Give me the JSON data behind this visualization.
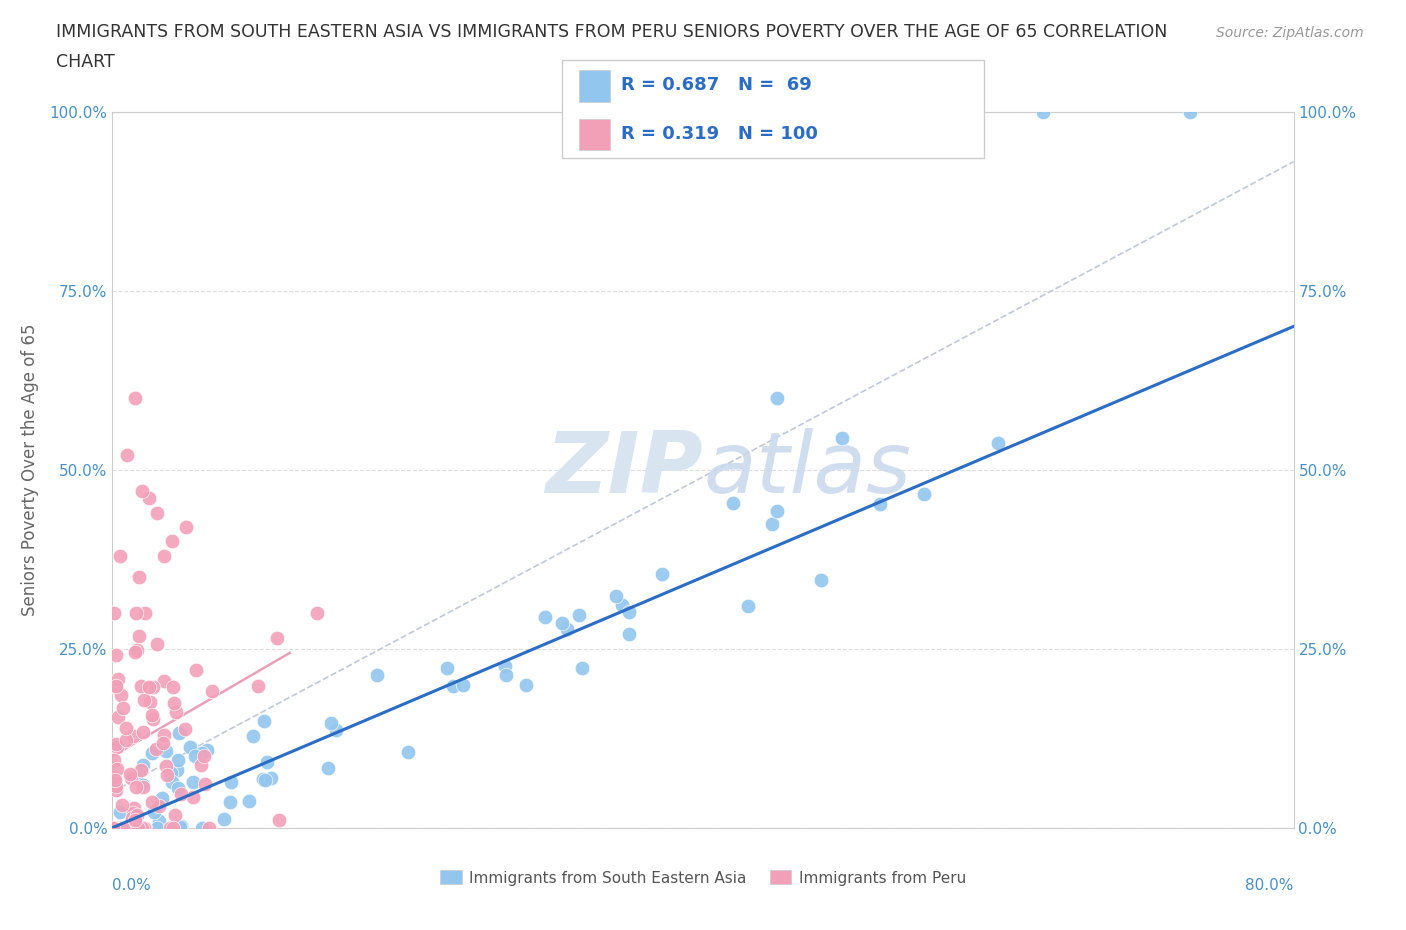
{
  "title_line1": "IMMIGRANTS FROM SOUTH EASTERN ASIA VS IMMIGRANTS FROM PERU SENIORS POVERTY OVER THE AGE OF 65 CORRELATION",
  "title_line2": "CHART",
  "source": "Source: ZipAtlas.com",
  "xlabel_bottom_left": "0.0%",
  "xlabel_bottom_right": "80.0%",
  "ylabel": "Seniors Poverty Over the Age of 65",
  "yticks": [
    "0.0%",
    "25.0%",
    "50.0%",
    "75.0%",
    "100.0%"
  ],
  "ytick_vals": [
    0,
    25,
    50,
    75,
    100
  ],
  "xmin": 0,
  "xmax": 80,
  "ymin": 0,
  "ymax": 100,
  "color_blue": "#93C6EE",
  "color_pink": "#F2A0B8",
  "color_blue_line": "#2B6CC4",
  "color_pink_line": "#E8A0B8",
  "color_gray_dashed": "#C0C8D8",
  "color_axis_text": "#4A90C4",
  "color_legend_text": "#2B6CC4",
  "color_title": "#333333",
  "color_source": "#999999",
  "color_ylabel": "#666666",
  "color_grid": "#DDDDDD",
  "color_spine": "#CCCCCC",
  "watermark_zip": "ZIP",
  "watermark_atlas": "atlas",
  "watermark_color": "#D8E4F0",
  "legend_label1": "Immigrants from South Eastern Asia",
  "legend_label2": "Immigrants from Peru",
  "title_fontsize": 12.5,
  "axis_fontsize": 11,
  "legend_fontsize": 13,
  "source_fontsize": 10
}
